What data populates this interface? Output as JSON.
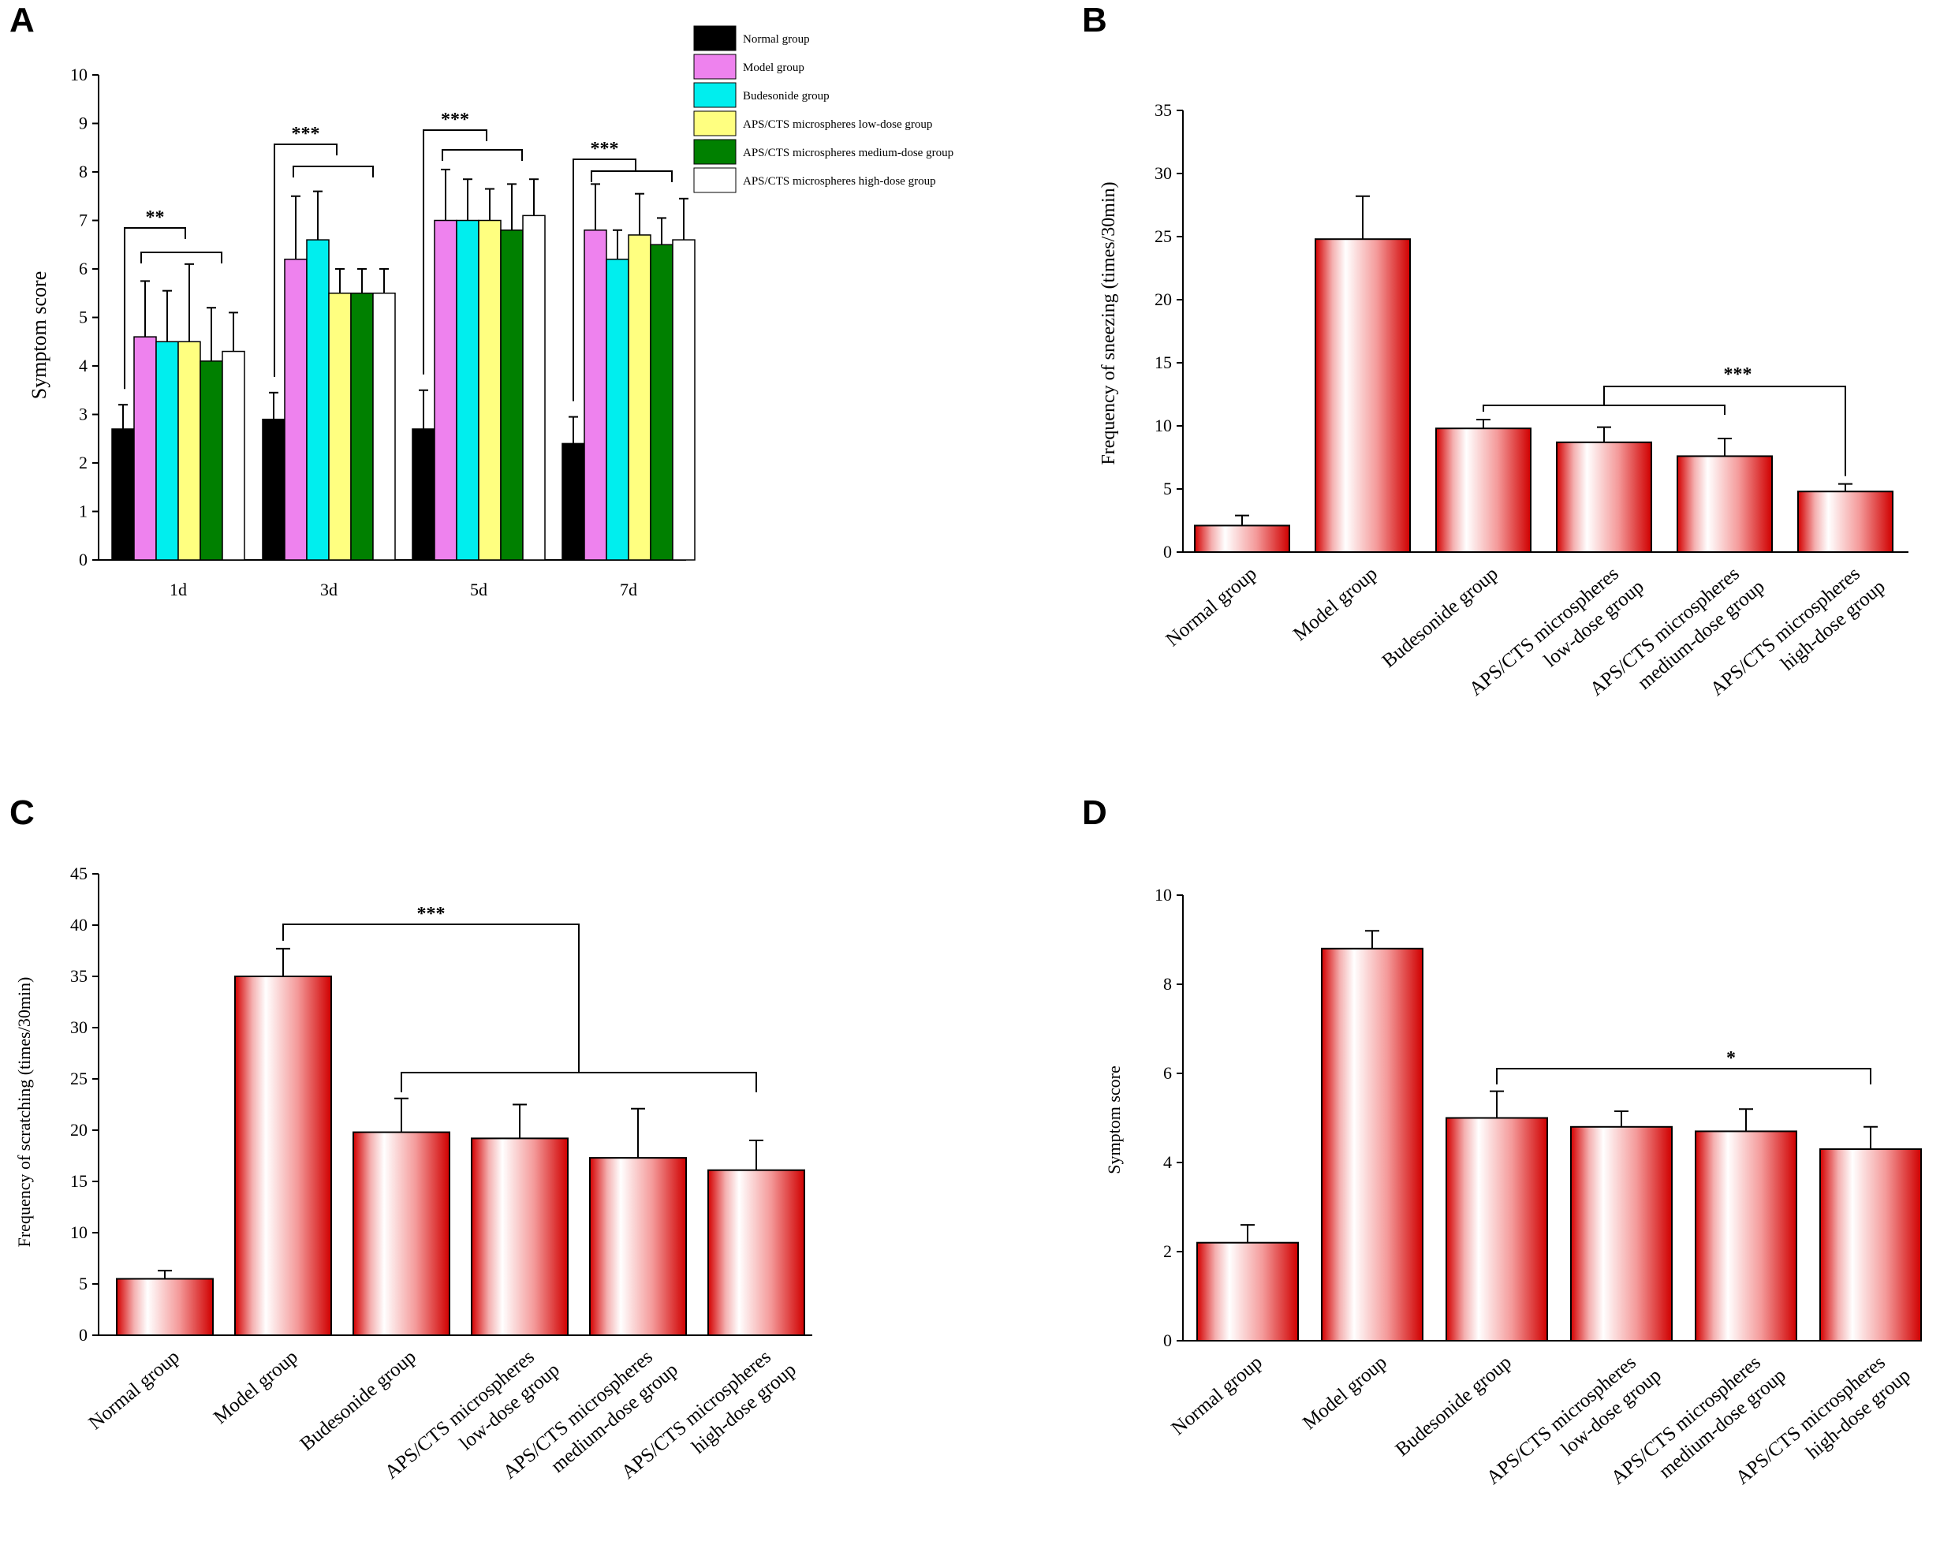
{
  "chart_data": [
    {
      "panel": "A",
      "type": "bar",
      "title": "",
      "xlabel": "",
      "ylabel": "Symptom score",
      "ylim": [
        0,
        10
      ],
      "yticks": [
        "0",
        "1",
        "2",
        "3",
        "4",
        "5",
        "6",
        "7",
        "8",
        "9",
        "10"
      ],
      "categories": [
        "1d",
        "3d",
        "5d",
        "7d"
      ],
      "legend_position": "top-right",
      "series": [
        {
          "name": "Normal group",
          "color": "#000000",
          "values": [
            2.7,
            2.9,
            2.7,
            2.4
          ],
          "errors": [
            0.5,
            0.55,
            0.8,
            0.55
          ]
        },
        {
          "name": "Model group",
          "color": "#ee82ee",
          "values": [
            4.6,
            6.2,
            7.0,
            6.8
          ],
          "errors": [
            1.15,
            1.3,
            1.05,
            0.95
          ]
        },
        {
          "name": "Budesonide group",
          "color": "#00eeee",
          "values": [
            4.5,
            6.6,
            7.0,
            6.2
          ],
          "errors": [
            1.05,
            1.0,
            0.85,
            0.6
          ]
        },
        {
          "name": "APS/CTS microspheres low-dose group",
          "color": "#ffff80",
          "values": [
            4.5,
            5.5,
            7.0,
            6.7
          ],
          "errors": [
            1.6,
            0.5,
            0.65,
            0.85
          ]
        },
        {
          "name": "APS/CTS microspheres medium-dose group",
          "color": "#008000",
          "values": [
            4.1,
            5.5,
            6.8,
            6.5
          ],
          "errors": [
            1.1,
            0.5,
            0.95,
            0.55
          ]
        },
        {
          "name": "APS/CTS microspheres high-dose group",
          "color": "#ffffff",
          "values": [
            4.3,
            5.5,
            7.1,
            6.6
          ],
          "errors": [
            0.8,
            0.5,
            0.75,
            0.85
          ]
        }
      ],
      "annotations": [
        "**",
        "***",
        "***",
        "***"
      ]
    },
    {
      "panel": "B",
      "type": "bar",
      "title": "",
      "xlabel": "",
      "ylabel": "Frequency of sneezing (times/30min)",
      "ylim": [
        0,
        35
      ],
      "yticks": [
        "0",
        "5",
        "10",
        "15",
        "20",
        "25",
        "30",
        "35"
      ],
      "categories": [
        "Normal group",
        "Model group",
        "Budesonide group",
        "APS/CTS microspheres low-dose group",
        "APS/CTS microspheres medium-dose group",
        "APS/CTS microspheres high-dose group"
      ],
      "category_lines": [
        [
          "Normal group"
        ],
        [
          "Model group"
        ],
        [
          "Budesonide group"
        ],
        [
          "APS/CTS microspheres",
          "low-dose group"
        ],
        [
          "APS/CTS microspheres",
          "medium-dose group"
        ],
        [
          "APS/CTS microspheres",
          "high-dose group"
        ]
      ],
      "values": [
        2.1,
        24.8,
        9.8,
        8.7,
        7.6,
        4.8
      ],
      "errors": [
        0.8,
        3.4,
        0.7,
        1.2,
        1.4,
        0.6
      ],
      "annotations": [
        "***"
      ]
    },
    {
      "panel": "C",
      "type": "bar",
      "title": "",
      "xlabel": "",
      "ylabel": "Frequency of scratching (times/30min)",
      "ylim": [
        0,
        45
      ],
      "yticks": [
        "0",
        "5",
        "10",
        "15",
        "20",
        "25",
        "30",
        "35",
        "40",
        "45"
      ],
      "categories": [
        "Normal group",
        "Model group",
        "Budesonide group",
        "APS/CTS microspheres low-dose group",
        "APS/CTS microspheres medium-dose group",
        "APS/CTS microspheres high-dose group"
      ],
      "category_lines": [
        [
          "Normal group"
        ],
        [
          "Model group"
        ],
        [
          "Budesonide group"
        ],
        [
          "APS/CTS microspheres",
          "low-dose group"
        ],
        [
          "APS/CTS microspheres",
          "medium-dose group"
        ],
        [
          "APS/CTS microspheres",
          "high-dose group"
        ]
      ],
      "values": [
        5.5,
        35.0,
        19.8,
        19.2,
        17.3,
        16.1
      ],
      "errors": [
        0.8,
        2.7,
        3.3,
        3.3,
        4.8,
        2.9
      ],
      "annotations": [
        "***"
      ]
    },
    {
      "panel": "D",
      "type": "bar",
      "title": "",
      "xlabel": "",
      "ylabel": "Symptom score",
      "ylim": [
        0,
        10
      ],
      "yticks": [
        "0",
        "2",
        "4",
        "6",
        "8",
        "10"
      ],
      "categories": [
        "Normal group",
        "Model group",
        "Budesonide group",
        "APS/CTS microspheres low-dose group",
        "APS/CTS microspheres medium-dose group",
        "APS/CTS microspheres high-dose group"
      ],
      "category_lines": [
        [
          "Normal group"
        ],
        [
          "Model group"
        ],
        [
          "Budesonide group"
        ],
        [
          "APS/CTS microspheres",
          "low-dose group"
        ],
        [
          "APS/CTS microspheres",
          "medium-dose group"
        ],
        [
          "APS/CTS microspheres",
          "high-dose group"
        ]
      ],
      "values": [
        2.2,
        8.8,
        5.0,
        4.8,
        4.7,
        4.3
      ],
      "errors": [
        0.4,
        0.4,
        0.6,
        0.35,
        0.5,
        0.5
      ],
      "annotations": [
        "*"
      ]
    }
  ],
  "colors": {
    "bar_edge": "#cc0000",
    "bar_mid": "#ffffff",
    "axis": "#000000"
  }
}
